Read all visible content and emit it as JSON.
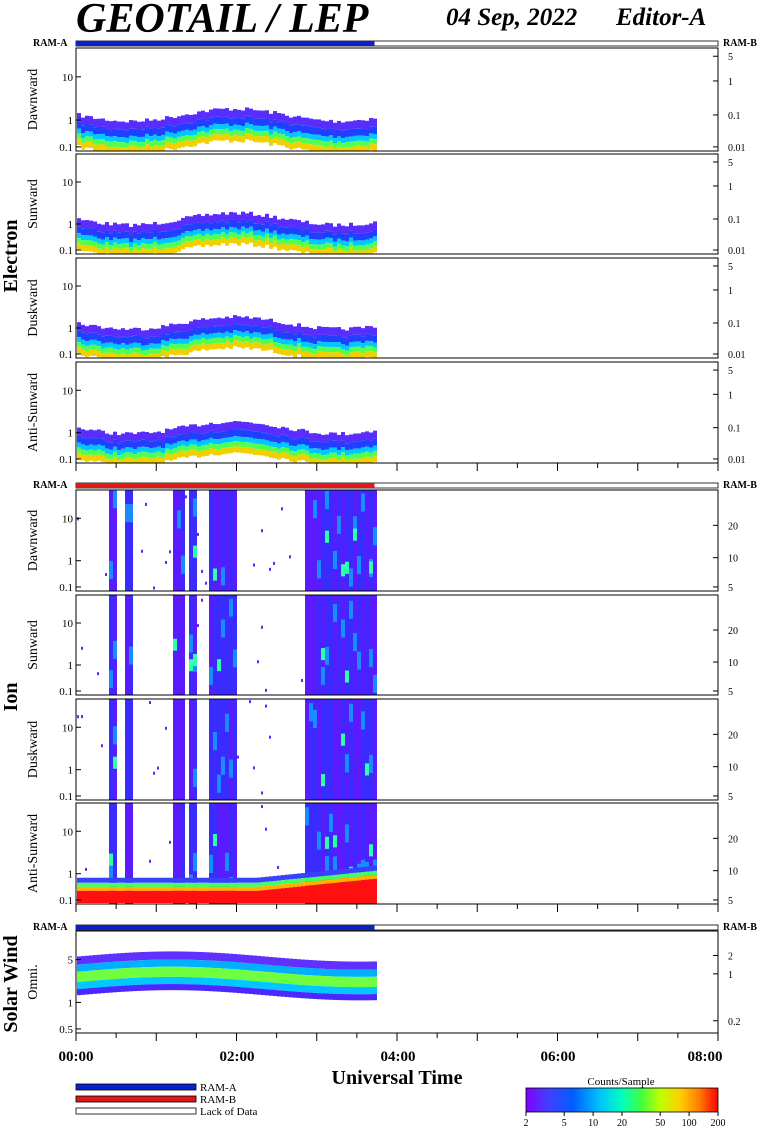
{
  "header": {
    "title": "GEOTAIL / LEP",
    "date": "04 Sep, 2022",
    "editor": "Editor-A"
  },
  "ram_labels": {
    "left": "RAM-A",
    "right": "RAM-B"
  },
  "chart_data": {
    "type": "heatmap",
    "x_axis": {
      "label": "Universal Time",
      "range_hours": [
        0,
        8
      ],
      "major_ticks": [
        "00:00",
        "02:00",
        "04:00",
        "06:00",
        "08:00"
      ],
      "data_end_hours": 3.72,
      "minor_tick_hours": 0.5
    },
    "colorbar": {
      "label": "Counts/Sample",
      "ticks": [
        "2",
        "5",
        "10",
        "20",
        "50",
        "100",
        "200"
      ],
      "range": [
        2,
        200
      ],
      "scale": "log",
      "colors": [
        "#8000ff",
        "#4040ff",
        "#0060ff",
        "#00c0ff",
        "#00ffc0",
        "#40ff40",
        "#c0ff00",
        "#ffd000",
        "#ff8000",
        "#ff0000"
      ]
    },
    "legend": [
      {
        "label": "RAM-A",
        "color": "#0a20c8"
      },
      {
        "label": "RAM-B",
        "color": "#e21818"
      },
      {
        "label": "Lack of Data",
        "color": "#ffffff"
      }
    ],
    "groups": [
      {
        "name": "Electron",
        "mode": "RAM-A",
        "mode_color": "#0a20c8",
        "left_ticks": [
          "10",
          "1",
          "0.1"
        ],
        "panels": [
          {
            "label": "Dawnward",
            "right_ticks": [
              "5",
              "1",
              "0.1",
              "0.01"
            ]
          },
          {
            "label": "Sunward",
            "right_ticks": [
              "5",
              "1",
              "0.1",
              "0.01"
            ]
          },
          {
            "label": "Duskward",
            "right_ticks": [
              "5",
              "1",
              "0.1",
              "0.01"
            ]
          },
          {
            "label": "Anti-Sunward",
            "right_ticks": [
              "5",
              "1",
              "0.1",
              "0.01"
            ]
          }
        ]
      },
      {
        "name": "Ion",
        "mode": "RAM-B",
        "mode_color": "#e21818",
        "left_ticks": [
          "10",
          "1",
          "0.1"
        ],
        "panels": [
          {
            "label": "Dawnward",
            "right_ticks": [
              "20",
              "10",
              "5"
            ]
          },
          {
            "label": "Sunward",
            "right_ticks": [
              "20",
              "10",
              "5"
            ]
          },
          {
            "label": "Duskward",
            "right_ticks": [
              "20",
              "10",
              "5"
            ]
          },
          {
            "label": "Anti-Sunward",
            "right_ticks": [
              "20",
              "10",
              "5"
            ]
          }
        ]
      },
      {
        "name": "Solar Wind",
        "mode": "RAM-A",
        "mode_color": "#0a20c8",
        "left_ticks": [
          "5",
          "1",
          "0.5"
        ],
        "panels": [
          {
            "label": "Omni.",
            "right_ticks": [
              "2",
              "1",
              "0.2"
            ]
          }
        ]
      }
    ],
    "ion_burst_intervals_hours": [
      [
        0.4,
        0.5
      ],
      [
        0.58,
        0.67
      ],
      [
        1.18,
        1.32
      ],
      [
        1.4,
        1.5
      ],
      [
        1.62,
        1.98
      ],
      [
        2.83,
        3.72
      ]
    ]
  }
}
